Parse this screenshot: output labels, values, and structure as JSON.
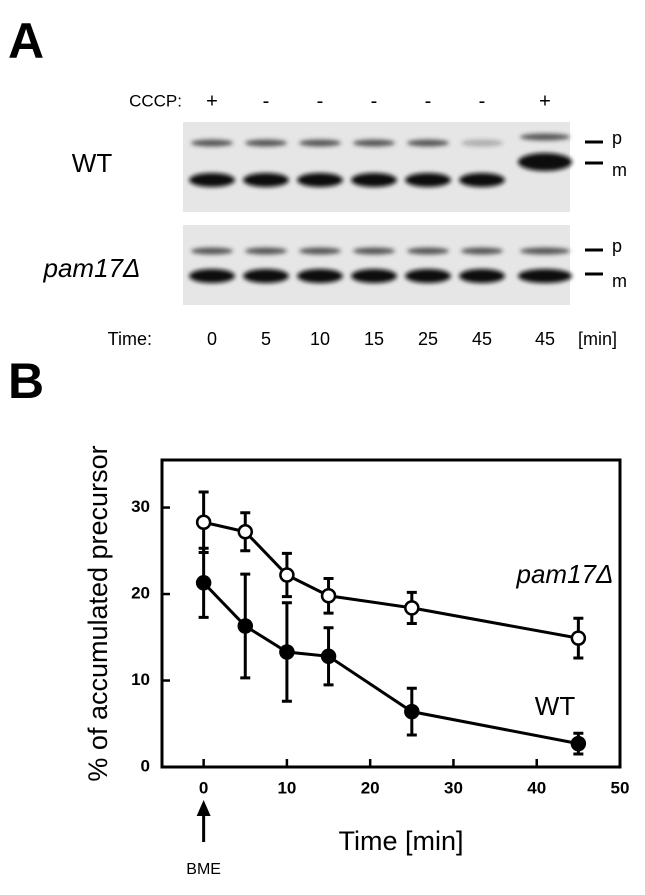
{
  "panel_a": {
    "label": "A",
    "cccp_label": "CCCP:",
    "cccp": [
      "+",
      "-",
      "-",
      "-",
      "-",
      "-",
      "+"
    ],
    "rows": [
      "WT",
      "pam17Δ"
    ],
    "bands": [
      "p",
      "m"
    ],
    "time_label": "Time:",
    "times": [
      "0",
      "5",
      "10",
      "15",
      "25",
      "45",
      "45"
    ],
    "time_unit": "[min]"
  },
  "chart_data": {
    "type": "line",
    "label": "B",
    "xlabel": "Time [min]",
    "ylabel": "% of accumulated precursor",
    "annotation": "BME",
    "x": [
      0,
      5,
      10,
      15,
      25,
      45
    ],
    "series": [
      {
        "name": "pam17Δ",
        "color": "#000000",
        "marker_fill": "#ffffff",
        "values": [
          28.3,
          27.2,
          22.2,
          19.8,
          18.4,
          14.9
        ],
        "errors": [
          3.5,
          2.2,
          2.5,
          2.0,
          1.8,
          2.3
        ]
      },
      {
        "name": "WT",
        "color": "#000000",
        "marker_fill": "#000000",
        "values": [
          21.3,
          16.3,
          13.3,
          12.8,
          6.4,
          2.7
        ],
        "errors": [
          4.0,
          6.0,
          5.7,
          3.3,
          2.7,
          1.2
        ]
      }
    ],
    "xlim": [
      -5,
      50
    ],
    "ylim": [
      0,
      35.5
    ],
    "xticks": [
      0,
      10,
      20,
      30,
      40,
      50
    ],
    "yticks": [
      0,
      10,
      20,
      30
    ]
  }
}
